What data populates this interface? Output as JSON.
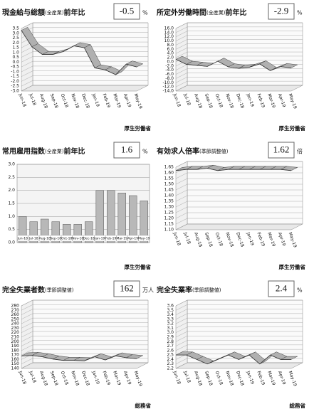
{
  "chart_data": [
    {
      "type": "line",
      "title": [
        "現金給与総額",
        "(全産業)",
        "前年比"
      ],
      "headline": -0.5,
      "unit": "%",
      "source": "厚生労働省",
      "categories": [
        "Jun-18",
        "Jul-18",
        "Aug-18",
        "Sep-18",
        "Oct-18",
        "Nov-18",
        "Dec-18",
        "Jan-19",
        "Feb-19",
        "Mar-19",
        "Apr-19",
        "May-19"
      ],
      "values": [
        3.3,
        1.6,
        0.8,
        0.8,
        1.1,
        1.7,
        1.5,
        -0.6,
        -0.8,
        -1.3,
        -0.2,
        -0.5
      ],
      "color": "#b0b0b0",
      "ylim": [
        -3,
        3.5
      ],
      "yticks": [
        {
          "value": -3,
          "label": "-3.0"
        },
        -2.5,
        {
          "value": -2,
          "label": "-2.0"
        },
        -1.5,
        {
          "value": -1,
          "label": "-1.0"
        },
        -0.5,
        {
          "value": 0,
          "label": "0.0"
        },
        0.5,
        {
          "value": 1,
          "label": "1.0"
        },
        1.5,
        {
          "value": 2,
          "label": "2.0"
        },
        2.5,
        {
          "value": 3,
          "label": "3.0"
        },
        3.5
      ]
    },
    {
      "type": "line",
      "title": [
        "所定外労働時間",
        "(全産業)",
        "前年比"
      ],
      "headline": -2.9,
      "unit": "%",
      "source": "厚生労働省",
      "categories": [
        "Jun-18",
        "Jul-18",
        "Aug-18",
        "Sep-18",
        "Oct-18",
        "Nov-18",
        "Dec-18",
        "Jan-19",
        "Feb-19",
        "Mar-19",
        "Apr-19",
        "May-19"
      ],
      "values": [
        1.2,
        -1.2,
        -1.7,
        -2.2,
        0.3,
        -2.4,
        -3.1,
        -2.6,
        -1.0,
        -4.2,
        -2.3,
        -2.9
      ],
      "color": "#b0b0b0",
      "ylim": [
        -14,
        16
      ],
      "yticks": [
        {
          "value": -14,
          "label": "-14.0"
        },
        {
          "value": -12,
          "label": "-12.0"
        },
        {
          "value": -10,
          "label": "-10.0"
        },
        {
          "value": -8,
          "label": "-8.0"
        },
        {
          "value": -6,
          "label": "-6.0"
        },
        {
          "value": -4,
          "label": "-4.0"
        },
        {
          "value": -2,
          "label": "-2.0"
        },
        {
          "value": 0,
          "label": "0.0"
        },
        {
          "value": 2,
          "label": "2.0"
        },
        {
          "value": 4,
          "label": "4.0"
        },
        {
          "value": 6,
          "label": "6.0"
        },
        {
          "value": 8,
          "label": "8.0"
        },
        {
          "value": 10,
          "label": "10.0"
        },
        {
          "value": 12,
          "label": "12.0"
        },
        {
          "value": 14,
          "label": "14.0"
        },
        {
          "value": 16,
          "label": "16.0"
        }
      ]
    },
    {
      "type": "bar",
      "title": [
        "常用雇用指数",
        "(全産業)",
        "前年比"
      ],
      "headline": 1.6,
      "unit": "%",
      "source": "厚生労働省",
      "categories": [
        "Jun-18",
        "Jul-18",
        "Aug-18",
        "Sep-18",
        "Oct-18",
        "Nov-18",
        "Dec-18",
        "Jan-19",
        "Feb-19",
        "Mar-19",
        "Apr-19",
        "May-19"
      ],
      "values": [
        1.0,
        0.8,
        0.9,
        0.8,
        0.7,
        0.7,
        0.8,
        2.0,
        2.0,
        1.9,
        1.8,
        1.6
      ],
      "color": "#b8b8b8",
      "ylim": [
        0,
        3
      ],
      "yticks": [
        {
          "value": 0,
          "label": "0.0"
        },
        0.5,
        {
          "value": 1,
          "label": "1.0"
        },
        1.5,
        {
          "value": 2,
          "label": "2.0"
        },
        2.5,
        {
          "value": 3,
          "label": "3.0"
        }
      ]
    },
    {
      "type": "line",
      "title": [
        "有効求人倍率",
        "(季節調整値)"
      ],
      "headline": 1.62,
      "unit": "倍",
      "source": "厚生労働省",
      "categories": [
        "Jun-18",
        "Jul-18",
        "Aug-18",
        "Sep-18",
        "Oct-18",
        "Nov-18",
        "Dec-18",
        "Jan-19",
        "Feb-19",
        "Mar-19",
        "Apr-19",
        "May-19"
      ],
      "values": [
        1.62,
        1.63,
        1.63,
        1.64,
        1.62,
        1.63,
        1.63,
        1.63,
        1.63,
        1.63,
        1.63,
        1.62
      ],
      "color": "#b0b0b0",
      "ylim": [
        1.1,
        1.65
      ],
      "yticks": [
        {
          "value": 1.1,
          "label": "1.10"
        },
        1.15,
        {
          "value": 1.2,
          "label": "1.20"
        },
        1.25,
        {
          "value": 1.3,
          "label": "1.30"
        },
        1.35,
        {
          "value": 1.4,
          "label": "1.40"
        },
        1.45,
        {
          "value": 1.5,
          "label": "1.50"
        },
        1.55,
        {
          "value": 1.6,
          "label": "1.60"
        },
        1.65
      ]
    },
    {
      "type": "line",
      "title": [
        "完全失業者数",
        "(季節調整値)"
      ],
      "headline": 162,
      "unit": "万人",
      "source": "総務省",
      "categories": [
        "Jun-18",
        "Jul-18",
        "Aug-18",
        "Sep-18",
        "Oct-18",
        "Nov-18",
        "Dec-18",
        "Jan-19",
        "Feb-19",
        "Mar-19",
        "Apr-19",
        "May-19"
      ],
      "values": [
        168,
        169,
        166,
        161,
        158,
        158,
        157,
        166,
        159,
        168,
        164,
        162
      ],
      "color": "#b0b0b0",
      "ylim": [
        140,
        280
      ],
      "yticks": [
        140,
        150,
        160,
        170,
        180,
        190,
        200,
        210,
        220,
        230,
        240,
        250,
        260,
        270,
        280
      ]
    },
    {
      "type": "line",
      "title": [
        "完全失業率",
        "(季節調整値)"
      ],
      "headline": 2.4,
      "unit": "%",
      "source": "総務省",
      "categories": [
        "Jun-18",
        "Jul-18",
        "Aug-18",
        "Sep-18",
        "Oct-18",
        "Nov-18",
        "Dec-18",
        "Jan-19",
        "Feb-19",
        "Mar-19",
        "Apr-19",
        "May-19"
      ],
      "values": [
        2.5,
        2.5,
        2.4,
        2.3,
        2.4,
        2.5,
        2.4,
        2.5,
        2.3,
        2.5,
        2.4,
        2.4
      ],
      "color": "#b0b0b0",
      "ylim": [
        2.2,
        3.6
      ],
      "yticks": [
        2.2,
        2.3,
        2.4,
        2.5,
        2.6,
        2.7,
        2.8,
        2.9,
        {
          "value": 3,
          "label": "3.0"
        },
        3.1,
        3.2,
        3.3,
        3.4,
        3.5,
        3.6
      ]
    }
  ]
}
